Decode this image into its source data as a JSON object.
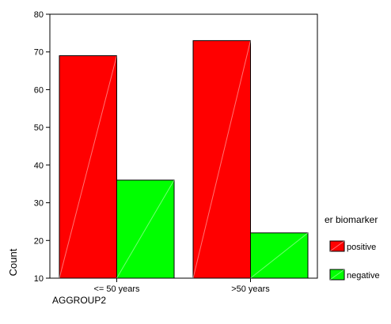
{
  "chart_data": {
    "type": "bar",
    "title": "",
    "xlabel": "AGGROUP2",
    "ylabel": "Count",
    "categories": [
      "<= 50 years",
      ">50 years"
    ],
    "series": [
      {
        "name": "positive",
        "values": [
          69,
          73
        ],
        "color": "#ff0000"
      },
      {
        "name": "negative",
        "values": [
          36,
          22
        ],
        "color": "#00ff00"
      }
    ],
    "ylim": [
      10,
      80
    ],
    "yticks": [
      10,
      20,
      30,
      40,
      50,
      60,
      70,
      80
    ],
    "legend": {
      "title": "er biomarker",
      "placement": "right"
    },
    "grid": false
  }
}
